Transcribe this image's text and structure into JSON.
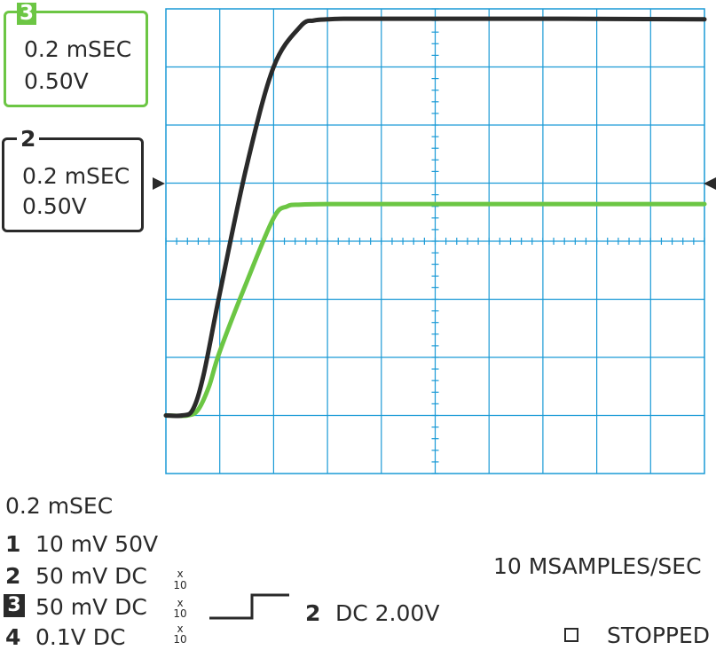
{
  "chart_data": {
    "type": "line",
    "grid": true,
    "xlim": [
      0,
      2
    ],
    "ylim": [
      -4,
      4
    ],
    "series": [
      {
        "channel": "2",
        "color": "#2a2a2a",
        "x": [
          0,
          0.06,
          0.1,
          0.14,
          0.2,
          0.3,
          0.4,
          0.5,
          0.55,
          0.6,
          0.66,
          0.8,
          1.0,
          1.4,
          2.0
        ],
        "y": [
          -3.0,
          -3.0,
          -2.9,
          -2.3,
          -0.9,
          1.3,
          3.0,
          3.7,
          3.8,
          3.82,
          3.83,
          3.83,
          3.83,
          3.83,
          3.82
        ]
      },
      {
        "channel": "3",
        "color": "#6cc644",
        "x": [
          0,
          0.08,
          0.12,
          0.16,
          0.2,
          0.3,
          0.4,
          0.45,
          0.5,
          0.6,
          0.8,
          1.0,
          1.4,
          2.0
        ],
        "y": [
          -3.0,
          -3.0,
          -2.9,
          -2.5,
          -1.9,
          -0.7,
          0.4,
          0.6,
          0.63,
          0.64,
          0.64,
          0.64,
          0.64,
          0.64
        ]
      }
    ]
  },
  "channel_boxes": [
    {
      "number": "3",
      "timebase": "0.2 mSEC",
      "volts": "0.50V"
    },
    {
      "number": "2",
      "timebase": "0.2 mSEC",
      "volts": "0.50V"
    }
  ],
  "timebase": "0.2 mSEC",
  "channels": [
    {
      "number": "1",
      "setting": "10 mV 50V",
      "probe": ""
    },
    {
      "number": "2",
      "setting": "50 mV DC",
      "probe_x": "x",
      "probe_n": "10"
    },
    {
      "number": "3",
      "setting": "50 mV DC",
      "probe_x": "x",
      "probe_n": "10"
    },
    {
      "number": "4",
      "setting": "0.1V DC",
      "probe_x": "x",
      "probe_n": "10"
    }
  ],
  "trigger": {
    "channel": "2",
    "label": "DC 2.00V"
  },
  "sample_rate": "10 MSAMPLES/SEC",
  "status": "STOPPED",
  "colors": {
    "grid": "#1a9ad6",
    "ch2": "#2a2a2a",
    "ch3": "#6cc644"
  }
}
